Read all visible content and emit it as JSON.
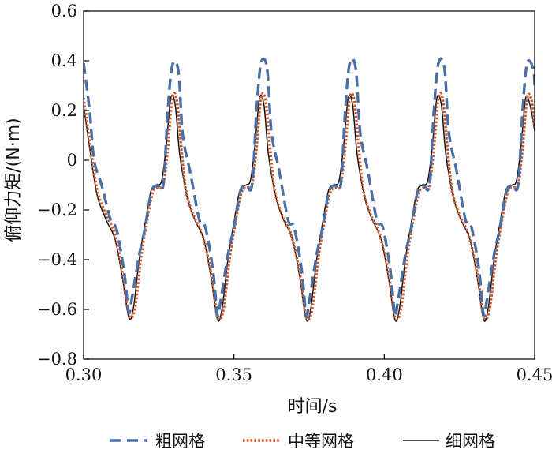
{
  "chart_data": {
    "type": "line",
    "xlabel": "时间/s",
    "ylabel": "俯仰力矩/(N·m)",
    "xlim": [
      0.3,
      0.45
    ],
    "ylim": [
      -0.8,
      0.6
    ],
    "x_ticks": [
      "0.30",
      "0.35",
      "0.40",
      "0.45"
    ],
    "x_tick_values": [
      0.3,
      0.35,
      0.4,
      0.45
    ],
    "y_ticks": [
      "0.6",
      "0.4",
      "0.2",
      "0",
      "−0.2",
      "−0.4",
      "−0.6",
      "−0.8"
    ],
    "y_tick_values": [
      0.6,
      0.4,
      0.2,
      0.0,
      -0.2,
      -0.4,
      -0.6,
      -0.8
    ],
    "grid": false,
    "legend_position": "bottom",
    "period": 0.0295,
    "series": [
      {
        "name": "粗网格",
        "color": "#4a6fa5",
        "style": "dashed",
        "x": [
          0.3,
          0.302,
          0.3035,
          0.306,
          0.309,
          0.311,
          0.3135,
          0.315,
          0.316,
          0.3185,
          0.3205,
          0.3225,
          0.3245,
          0.3265,
          0.328,
          0.3295,
          0.3315,
          0.333,
          0.3355,
          0.3385,
          0.3405,
          0.343,
          0.3445,
          0.3455,
          0.348,
          0.35,
          0.352,
          0.354,
          0.356,
          0.3575,
          0.359,
          0.361,
          0.3625,
          0.365,
          0.368,
          0.37,
          0.3725,
          0.374,
          0.375,
          0.3775,
          0.3795,
          0.3815,
          0.3835,
          0.3855,
          0.387,
          0.3885,
          0.3905,
          0.392,
          0.3945,
          0.3975,
          0.3995,
          0.402,
          0.4035,
          0.4045,
          0.407,
          0.409,
          0.411,
          0.413,
          0.415,
          0.4165,
          0.418,
          0.42,
          0.4215,
          0.424,
          0.427,
          0.429,
          0.4315,
          0.433,
          0.434,
          0.4365,
          0.4385,
          0.4405,
          0.4425,
          0.4445,
          0.446,
          0.4475,
          0.4495,
          0.45
        ],
        "y": [
          0.39,
          0.2,
          0.0,
          -0.1,
          -0.24,
          -0.28,
          -0.45,
          -0.61,
          -0.56,
          -0.38,
          -0.27,
          -0.13,
          -0.1,
          -0.1,
          0.2,
          0.38,
          0.36,
          0.1,
          -0.05,
          -0.24,
          -0.27,
          -0.44,
          -0.62,
          -0.57,
          -0.38,
          -0.27,
          -0.13,
          -0.1,
          -0.1,
          0.2,
          0.39,
          0.37,
          0.11,
          -0.04,
          -0.24,
          -0.27,
          -0.44,
          -0.62,
          -0.57,
          -0.38,
          -0.27,
          -0.13,
          -0.1,
          -0.1,
          0.2,
          0.39,
          0.37,
          0.11,
          -0.04,
          -0.24,
          -0.27,
          -0.44,
          -0.62,
          -0.57,
          -0.38,
          -0.27,
          -0.13,
          -0.1,
          -0.1,
          0.2,
          0.39,
          0.37,
          0.11,
          -0.04,
          -0.24,
          -0.27,
          -0.44,
          -0.62,
          -0.57,
          -0.38,
          -0.27,
          -0.13,
          -0.1,
          -0.1,
          0.2,
          0.39,
          0.37,
          0.3
        ]
      },
      {
        "name": "中等网格",
        "color": "#c8582f",
        "style": "dotted",
        "x": [
          0.3,
          0.302,
          0.3045,
          0.3075,
          0.3105,
          0.313,
          0.315,
          0.317,
          0.319,
          0.321,
          0.323,
          0.325,
          0.3265,
          0.328,
          0.3295,
          0.331,
          0.3325,
          0.334,
          0.3365,
          0.3395,
          0.3425,
          0.3445,
          0.3465,
          0.3485,
          0.3505,
          0.3525,
          0.3545,
          0.356,
          0.3575,
          0.359,
          0.3605,
          0.362,
          0.3635,
          0.366,
          0.369,
          0.372,
          0.374,
          0.376,
          0.378,
          0.38,
          0.382,
          0.384,
          0.3855,
          0.387,
          0.3885,
          0.39,
          0.3915,
          0.393,
          0.3955,
          0.3985,
          0.4015,
          0.4035,
          0.4055,
          0.4075,
          0.4095,
          0.4115,
          0.4135,
          0.415,
          0.4165,
          0.418,
          0.4195,
          0.421,
          0.4225,
          0.425,
          0.428,
          0.431,
          0.433,
          0.435,
          0.437,
          0.439,
          0.441,
          0.443,
          0.4445,
          0.446,
          0.4475,
          0.449,
          0.45
        ],
        "y": [
          0.25,
          0.08,
          -0.12,
          -0.22,
          -0.3,
          -0.46,
          -0.62,
          -0.6,
          -0.4,
          -0.25,
          -0.13,
          -0.11,
          -0.1,
          0.05,
          0.25,
          0.24,
          0.05,
          -0.12,
          -0.22,
          -0.3,
          -0.46,
          -0.63,
          -0.6,
          -0.4,
          -0.25,
          -0.13,
          -0.11,
          -0.1,
          0.05,
          0.25,
          0.24,
          0.05,
          -0.12,
          -0.22,
          -0.3,
          -0.46,
          -0.63,
          -0.6,
          -0.4,
          -0.25,
          -0.13,
          -0.11,
          -0.1,
          0.05,
          0.25,
          0.24,
          0.05,
          -0.12,
          -0.22,
          -0.3,
          -0.46,
          -0.63,
          -0.6,
          -0.4,
          -0.25,
          -0.13,
          -0.11,
          -0.1,
          0.05,
          0.25,
          0.24,
          0.05,
          -0.12,
          -0.22,
          -0.3,
          -0.46,
          -0.63,
          -0.6,
          -0.4,
          -0.25,
          -0.13,
          -0.11,
          -0.1,
          0.05,
          0.25,
          0.24,
          0.12
        ]
      },
      {
        "name": "细网格",
        "color": "#111111",
        "style": "solid",
        "x": [
          0.3,
          0.302,
          0.3045,
          0.3075,
          0.3105,
          0.313,
          0.315,
          0.3165,
          0.3185,
          0.3205,
          0.3225,
          0.3245,
          0.326,
          0.3275,
          0.329,
          0.3305,
          0.332,
          0.3345,
          0.337,
          0.34,
          0.3425,
          0.3445,
          0.346,
          0.348,
          0.35,
          0.352,
          0.354,
          0.3555,
          0.357,
          0.3585,
          0.36,
          0.3615,
          0.364,
          0.3665,
          0.3695,
          0.372,
          0.374,
          0.3755,
          0.3775,
          0.3795,
          0.3815,
          0.3835,
          0.385,
          0.3865,
          0.388,
          0.3895,
          0.391,
          0.3935,
          0.396,
          0.399,
          0.4015,
          0.4035,
          0.405,
          0.407,
          0.409,
          0.411,
          0.413,
          0.4145,
          0.416,
          0.4175,
          0.419,
          0.4205,
          0.423,
          0.4255,
          0.4285,
          0.431,
          0.433,
          0.4345,
          0.4365,
          0.4385,
          0.4405,
          0.4425,
          0.444,
          0.4455,
          0.447,
          0.4485,
          0.45
        ],
        "y": [
          0.22,
          0.05,
          -0.14,
          -0.24,
          -0.32,
          -0.48,
          -0.63,
          -0.6,
          -0.4,
          -0.25,
          -0.12,
          -0.1,
          -0.08,
          0.06,
          0.25,
          0.22,
          0.02,
          -0.15,
          -0.24,
          -0.32,
          -0.48,
          -0.64,
          -0.6,
          -0.4,
          -0.25,
          -0.12,
          -0.1,
          -0.08,
          0.06,
          0.25,
          0.22,
          0.02,
          -0.15,
          -0.24,
          -0.32,
          -0.48,
          -0.64,
          -0.6,
          -0.4,
          -0.25,
          -0.12,
          -0.1,
          -0.08,
          0.06,
          0.25,
          0.22,
          0.02,
          -0.15,
          -0.24,
          -0.32,
          -0.48,
          -0.64,
          -0.6,
          -0.4,
          -0.25,
          -0.12,
          -0.1,
          -0.08,
          0.06,
          0.25,
          0.22,
          0.02,
          -0.15,
          -0.24,
          -0.32,
          -0.48,
          -0.64,
          -0.6,
          -0.4,
          -0.25,
          -0.12,
          -0.1,
          -0.08,
          0.06,
          0.25,
          0.22,
          0.12
        ]
      }
    ]
  }
}
